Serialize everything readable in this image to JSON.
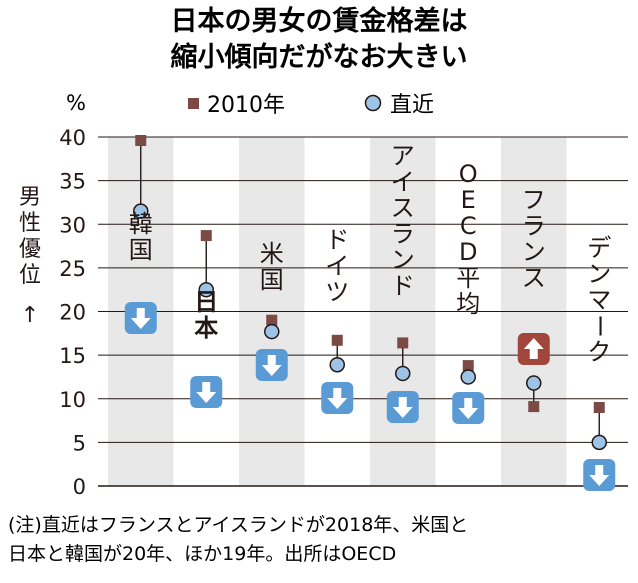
{
  "chart_data": {
    "type": "dot",
    "title_lines": [
      "日本の男女の賃金格差は",
      "縮小傾向だがなお大きい"
    ],
    "unit": "%",
    "ylabel": "男性優位",
    "ylabel_arrow": "↑",
    "ylim": [
      0,
      40
    ],
    "yticks": [
      "0",
      "5",
      "10",
      "15",
      "20",
      "25",
      "30",
      "35",
      "40"
    ],
    "ytick_values": [
      0,
      5,
      10,
      15,
      20,
      25,
      30,
      35,
      40
    ],
    "legend": [
      {
        "name": "2010年",
        "marker": "square",
        "color": "#7b4a45"
      },
      {
        "name": "直近",
        "marker": "circle",
        "color": "#9dc3e6"
      }
    ],
    "categories": [
      "韓国",
      "日本",
      "米国",
      "ドイツ",
      "アイスランド",
      "OECD平均",
      "フランス",
      "デンマーク"
    ],
    "series": [
      {
        "name": "2010年",
        "values": [
          39.6,
          28.7,
          19.0,
          16.7,
          16.4,
          13.8,
          9.1,
          9.0
        ]
      },
      {
        "name": "直近",
        "values": [
          31.5,
          22.5,
          17.7,
          13.9,
          12.9,
          12.5,
          11.8,
          5.0
        ]
      }
    ],
    "directions": [
      "down",
      "down",
      "down",
      "down",
      "down",
      "down",
      "up",
      "down"
    ],
    "colors": {
      "square": "#7b4a45",
      "circle_fill": "#9dc3e6",
      "down_badge": "#5b9bd5",
      "up_badge": "#a0463a",
      "band": "#e8e8e8",
      "grid": "#231815"
    },
    "note_lines": [
      "(注)直近はフランスとアイスランドが2018年、米国と",
      "日本と韓国が20年、ほか19年。出所はOECD"
    ]
  }
}
